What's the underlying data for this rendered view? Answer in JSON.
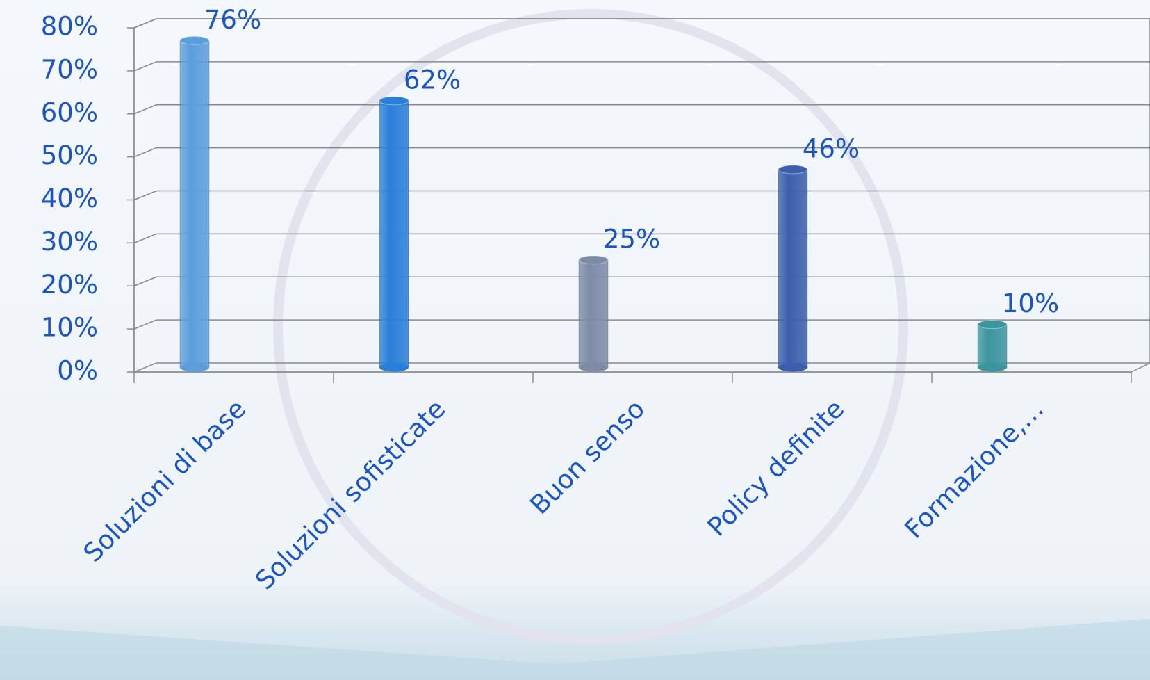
{
  "chart_data": {
    "type": "bar",
    "categories": [
      "Soluzioni di base",
      "Soluzioni sofisticate",
      "Buon senso",
      "Policy definite",
      "Formazione,…"
    ],
    "values": [
      76,
      62,
      25,
      46,
      10
    ],
    "value_labels": [
      "76%",
      "62%",
      "25%",
      "46%",
      "10%"
    ],
    "colors": [
      "#5b9edc",
      "#2a7fd9",
      "#7d8ba7",
      "#3c5eac",
      "#3b959f"
    ],
    "ylim": [
      0,
      80
    ],
    "yticks": [
      {
        "value": 0,
        "label": "0%"
      },
      {
        "value": 10,
        "label": "10%"
      },
      {
        "value": 20,
        "label": "20%"
      },
      {
        "value": 30,
        "label": "30%"
      },
      {
        "value": 40,
        "label": "40%"
      },
      {
        "value": 50,
        "label": "50%"
      },
      {
        "value": 60,
        "label": "60%"
      },
      {
        "value": 70,
        "label": "70%"
      },
      {
        "value": 80,
        "label": "80%"
      }
    ],
    "grid": true
  }
}
